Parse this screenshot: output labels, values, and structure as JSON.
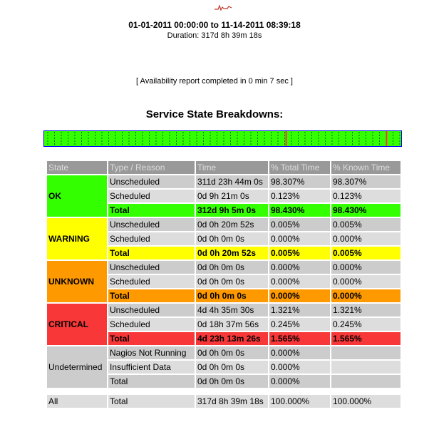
{
  "header": {
    "logo_icon": "nagios-logo-icon",
    "range": "01-01-2011 00:00:00 to 11-14-2011 08:39:18",
    "duration": "Duration: 317d 8h 39m 18s",
    "completed": "[ Availability report completed in 0 min 7 sec ]"
  },
  "section_title": "Service State Breakdowns:",
  "timeline": {
    "colors": {
      "ok": "#33FF00",
      "critical": "#F83838",
      "warning": "#FFFF00",
      "border": "#0000FF"
    },
    "critical_fractions": [
      0.675,
      0.955
    ]
  },
  "table": {
    "headers": [
      "State",
      "Type / Reason",
      "Time",
      "% Total Time",
      "% Known Time"
    ],
    "groups": [
      {
        "state": "OK",
        "rows": [
          {
            "type": "Unscheduled",
            "time": "311d 23h 44m 0s",
            "pt": "98.307%",
            "pk": "98.307%"
          },
          {
            "type": "Scheduled",
            "time": "0d 9h 21m 0s",
            "pt": "0.123%",
            "pk": "0.123%"
          },
          {
            "type": "Total",
            "time": "312d 9h 5m 0s",
            "pt": "98.430%",
            "pk": "98.430%"
          }
        ]
      },
      {
        "state": "WARNING",
        "rows": [
          {
            "type": "Unscheduled",
            "time": "0d 0h 20m 52s",
            "pt": "0.005%",
            "pk": "0.005%"
          },
          {
            "type": "Scheduled",
            "time": "0d 0h 0m 0s",
            "pt": "0.000%",
            "pk": "0.000%"
          },
          {
            "type": "Total",
            "time": "0d 0h 20m 52s",
            "pt": "0.005%",
            "pk": "0.005%"
          }
        ]
      },
      {
        "state": "UNKNOWN",
        "rows": [
          {
            "type": "Unscheduled",
            "time": "0d 0h 0m 0s",
            "pt": "0.000%",
            "pk": "0.000%"
          },
          {
            "type": "Scheduled",
            "time": "0d 0h 0m 0s",
            "pt": "0.000%",
            "pk": "0.000%"
          },
          {
            "type": "Total",
            "time": "0d 0h 0m 0s",
            "pt": "0.000%",
            "pk": "0.000%"
          }
        ]
      },
      {
        "state": "CRITICAL",
        "rows": [
          {
            "type": "Unscheduled",
            "time": "4d 4h 35m 30s",
            "pt": "1.321%",
            "pk": "1.321%"
          },
          {
            "type": "Scheduled",
            "time": "0d 18h 37m 56s",
            "pt": "0.245%",
            "pk": "0.245%"
          },
          {
            "type": "Total",
            "time": "4d 23h 13m 26s",
            "pt": "1.565%",
            "pk": "1.565%"
          }
        ]
      },
      {
        "state": "Undetermined",
        "rows": [
          {
            "type": "Nagios Not Running",
            "time": "0d 0h 0m 0s",
            "pt": "0.000%",
            "pk": ""
          },
          {
            "type": "Insufficient Data",
            "time": "0d 0h 0m 0s",
            "pt": "0.000%",
            "pk": ""
          },
          {
            "type": "Total",
            "time": "0d 0h 0m 0s",
            "pt": "0.000%",
            "pk": ""
          }
        ]
      }
    ],
    "all": {
      "state": "All",
      "type": "Total",
      "time": "317d 8h 39m 18s",
      "pt": "100.000%",
      "pk": "100.000%"
    }
  }
}
